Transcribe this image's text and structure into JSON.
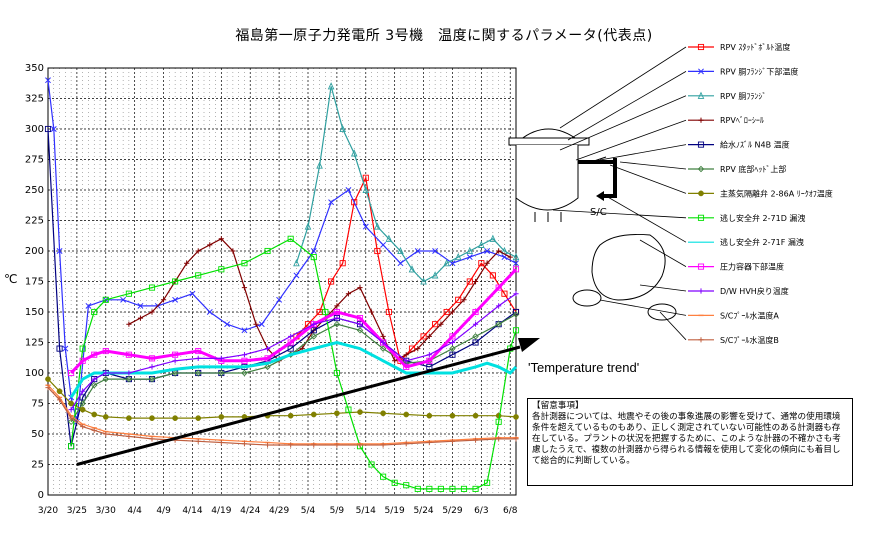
{
  "title": "福島第一原子力発電所 3号機　温度に関するパラメータ(代表点)",
  "annotation_label": "'Temperature trend'",
  "sc_label": "S/C",
  "notice": {
    "title": "【留意事項】",
    "body": "各計測器については、地震やその後の事象進展の影響を受けて、通常の使用環境条件を超えているものもあり、正しく測定されていない可能性のある計測器も存在している。プラントの状況を把握するために、このような計器の不確かさも考慮したうえで、複数の計測器から得られる情報を使用して変化の傾向にも着目して総合的に判断している。"
  },
  "colors": {
    "grid": "#000000",
    "axis": "#000000"
  },
  "chart_data": {
    "type": "line",
    "title": "福島第一原子力発電所 3号機　温度に関するパラメータ(代表点)",
    "ylabel": "℃",
    "xlabel": "",
    "ylim": [
      0,
      350
    ],
    "yticks": [
      0,
      25,
      50,
      75,
      100,
      125,
      150,
      175,
      200,
      225,
      250,
      275,
      300,
      325,
      350
    ],
    "xlim": [
      0,
      81
    ],
    "xticks": [
      "3/20",
      "3/25",
      "3/30",
      "4/4",
      "4/9",
      "4/14",
      "4/19",
      "4/24",
      "4/29",
      "5/4",
      "5/9",
      "5/14",
      "5/19",
      "5/24",
      "5/29",
      "6/3",
      "6/8"
    ],
    "grid": true,
    "legend_position": "right",
    "series": [
      {
        "name": "RPV ｽﾀｯﾄﾞﾎﾞﾙﾄ温度",
        "color": "#ff0000",
        "marker": "square",
        "x": [
          43,
          45,
          47,
          49,
          51,
          53,
          55,
          57,
          59,
          61,
          63,
          65,
          67,
          69,
          71,
          73,
          75,
          77,
          79,
          81
        ],
        "y": [
          130,
          140,
          150,
          175,
          190,
          240,
          260,
          200,
          150,
          110,
          120,
          130,
          140,
          150,
          160,
          175,
          190,
          180,
          165,
          150
        ]
      },
      {
        "name": "RPV 胴ﾌﾗﾝｼﾞ下部温度",
        "color": "#3030ff",
        "marker": "x",
        "x": [
          0,
          1,
          2,
          3,
          4,
          5,
          7,
          10,
          13,
          16,
          19,
          22,
          25,
          28,
          31,
          34,
          37,
          40,
          43,
          46,
          49,
          52,
          55,
          58,
          61,
          64,
          67,
          70,
          73,
          76,
          79,
          81
        ],
        "y": [
          340,
          300,
          200,
          120,
          80,
          60,
          155,
          160,
          160,
          155,
          155,
          160,
          165,
          150,
          140,
          135,
          140,
          160,
          180,
          200,
          240,
          250,
          220,
          205,
          190,
          200,
          200,
          190,
          195,
          200,
          195,
          190
        ]
      },
      {
        "name": "RPV 胴ﾌﾗﾝｼﾞ",
        "color": "#30a0a0",
        "marker": "triangle",
        "x": [
          43,
          45,
          47,
          49,
          51,
          53,
          55,
          57,
          59,
          61,
          63,
          65,
          67,
          69,
          71,
          73,
          75,
          77,
          79,
          81
        ],
        "y": [
          190,
          220,
          270,
          335,
          300,
          280,
          250,
          220,
          210,
          200,
          185,
          175,
          180,
          190,
          195,
          200,
          205,
          210,
          200,
          195
        ]
      },
      {
        "name": "RPVﾍﾞﾛｰｼｰﾙ",
        "color": "#800000",
        "marker": "star",
        "x": [
          14,
          16,
          18,
          20,
          22,
          24,
          26,
          28,
          30,
          32,
          34,
          36,
          38,
          40,
          42,
          44,
          46,
          48,
          50,
          52,
          54,
          56,
          58,
          60,
          62,
          64,
          66,
          68,
          70,
          72,
          74,
          76,
          78,
          80
        ],
        "y": [
          140,
          145,
          150,
          160,
          175,
          190,
          200,
          205,
          210,
          200,
          170,
          140,
          120,
          110,
          115,
          120,
          135,
          145,
          155,
          165,
          170,
          150,
          130,
          110,
          115,
          120,
          130,
          140,
          150,
          160,
          175,
          190,
          200,
          195
        ]
      },
      {
        "name": "給水ﾉｽﾞﾙ N4B 温度",
        "color": "#000080",
        "marker": "square",
        "x": [
          0,
          2,
          4,
          6,
          8,
          10,
          14,
          18,
          22,
          26,
          30,
          34,
          38,
          42,
          46,
          50,
          54,
          58,
          62,
          66,
          70,
          74,
          78,
          81
        ],
        "y": [
          300,
          120,
          40,
          80,
          95,
          100,
          95,
          95,
          100,
          100,
          100,
          105,
          110,
          120,
          135,
          145,
          140,
          125,
          110,
          105,
          115,
          125,
          140,
          150
        ]
      },
      {
        "name": "RPV 底部ﾍｯﾄﾞ上部",
        "color": "#408040",
        "marker": "diamond",
        "x": [
          4,
          6,
          8,
          10,
          14,
          18,
          22,
          26,
          30,
          34,
          38,
          42,
          46,
          50,
          54,
          58,
          62,
          66,
          70,
          74,
          78,
          81
        ],
        "y": [
          60,
          75,
          90,
          95,
          95,
          95,
          100,
          100,
          100,
          100,
          105,
          115,
          130,
          140,
          135,
          120,
          108,
          110,
          120,
          130,
          140,
          148
        ]
      },
      {
        "name": "主蒸気隔離弁 2-86A ﾘｰｸｵﾌ温度",
        "color": "#808000",
        "marker": "circle",
        "x": [
          0,
          2,
          4,
          6,
          8,
          10,
          14,
          18,
          22,
          26,
          30,
          34,
          38,
          42,
          46,
          50,
          54,
          58,
          62,
          66,
          70,
          74,
          78,
          81
        ],
        "y": [
          95,
          85,
          75,
          70,
          66,
          64,
          63,
          63,
          63,
          63,
          64,
          64,
          65,
          65,
          66,
          67,
          68,
          67,
          66,
          65,
          65,
          65,
          65,
          64
        ]
      },
      {
        "name": "逃し安全弁 2-71D 漏洩",
        "color": "#00e000",
        "marker": "square",
        "x": [
          4,
          6,
          8,
          10,
          14,
          18,
          22,
          26,
          30,
          34,
          38,
          42,
          46,
          48,
          50,
          52,
          54,
          56,
          58,
          60,
          62,
          64,
          66,
          68,
          70,
          72,
          74,
          76,
          78,
          80,
          81
        ],
        "y": [
          40,
          120,
          150,
          160,
          165,
          170,
          175,
          180,
          185,
          190,
          200,
          210,
          195,
          150,
          100,
          70,
          40,
          25,
          15,
          10,
          8,
          5,
          5,
          5,
          5,
          5,
          5,
          10,
          60,
          120,
          135
        ]
      },
      {
        "name": "逃し安全弁 2-71F 漏洩",
        "color": "#00e0e0",
        "marker": "none",
        "x": [
          4,
          6,
          8,
          10,
          14,
          18,
          22,
          26,
          30,
          34,
          38,
          42,
          46,
          50,
          54,
          58,
          62,
          66,
          70,
          74,
          76,
          78,
          80,
          81
        ],
        "y": [
          80,
          95,
          100,
          100,
          100,
          100,
          103,
          105,
          105,
          105,
          108,
          115,
          120,
          125,
          120,
          110,
          100,
          100,
          100,
          105,
          108,
          105,
          100,
          105
        ]
      },
      {
        "name": "圧力容器下部温度",
        "color": "#ff00ff",
        "marker": "square",
        "x": [
          4,
          6,
          8,
          10,
          14,
          18,
          22,
          26,
          30,
          34,
          38,
          42,
          46,
          50,
          54,
          58,
          62,
          66,
          70,
          74,
          78,
          81
        ],
        "y": [
          100,
          110,
          115,
          118,
          115,
          112,
          115,
          118,
          110,
          110,
          112,
          125,
          140,
          150,
          145,
          125,
          105,
          110,
          130,
          150,
          170,
          185
        ]
      },
      {
        "name": "D/W HVH戻り温度",
        "color": "#8000ff",
        "marker": "plus",
        "x": [
          4,
          6,
          8,
          10,
          14,
          18,
          22,
          26,
          30,
          34,
          38,
          42,
          46,
          50,
          54,
          58,
          62,
          66,
          70,
          74,
          78,
          81
        ],
        "y": [
          70,
          85,
          95,
          100,
          100,
          105,
          110,
          112,
          112,
          115,
          120,
          130,
          140,
          145,
          140,
          125,
          110,
          115,
          125,
          140,
          155,
          165
        ]
      },
      {
        "name": "S/Cﾌﾟｰﾙ水温度A",
        "color": "#ff8040",
        "marker": "dash",
        "x": [
          0,
          2,
          4,
          6,
          8,
          10,
          14,
          18,
          22,
          26,
          30,
          34,
          38,
          42,
          46,
          50,
          54,
          58,
          62,
          66,
          70,
          74,
          78,
          81
        ],
        "y": [
          90,
          80,
          65,
          58,
          55,
          52,
          50,
          48,
          47,
          46,
          45,
          44,
          43,
          42,
          42,
          42,
          42,
          42,
          43,
          44,
          45,
          46,
          47,
          47
        ]
      },
      {
        "name": "S/Cﾌﾟｰﾙ水温度B",
        "color": "#c06040",
        "marker": "plus",
        "x": [
          0,
          2,
          4,
          6,
          8,
          10,
          14,
          18,
          22,
          26,
          30,
          34,
          38,
          42,
          46,
          50,
          54,
          58,
          62,
          66,
          70,
          74,
          78,
          81
        ],
        "y": [
          88,
          78,
          63,
          56,
          53,
          50,
          48,
          46,
          45,
          44,
          43,
          42,
          41,
          41,
          41,
          41,
          41,
          41,
          42,
          43,
          44,
          45,
          46,
          46
        ]
      }
    ]
  }
}
